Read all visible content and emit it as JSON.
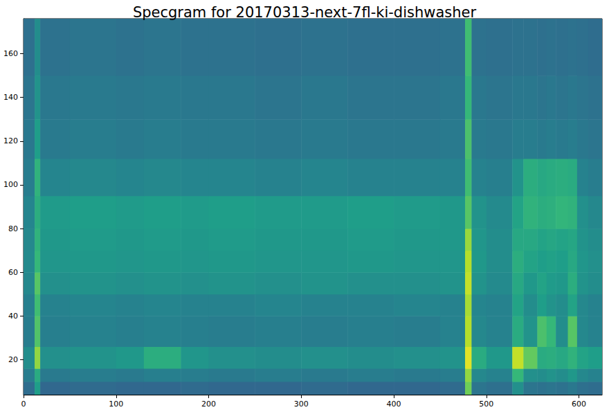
{
  "chart_data": {
    "type": "heatmap",
    "title": "Specgram for 20170313-next-7fl-ki-dishwasher",
    "xlim": [
      0,
      625
    ],
    "xticks": [
      0,
      100,
      200,
      300,
      400,
      500,
      600
    ],
    "ylim": [
      4,
      176
    ],
    "yticks": [
      20,
      40,
      60,
      80,
      100,
      120,
      140,
      160
    ],
    "grid": false,
    "x_edges": [
      0,
      12,
      18,
      50,
      100,
      130,
      170,
      200,
      250,
      300,
      350,
      400,
      450,
      477,
      484,
      500,
      528,
      540,
      555,
      565,
      575,
      588,
      598,
      610,
      625
    ],
    "y_edges": [
      4,
      10,
      16,
      26,
      40,
      50,
      60,
      70,
      80,
      95,
      112,
      130,
      150,
      176
    ],
    "zlim": [
      1,
      10
    ],
    "cells": [
      [
        4.2,
        6.0,
        4.0,
        4.1,
        4.0,
        4.0,
        4.1,
        4.0,
        4.0,
        4.1,
        4.0,
        4.0,
        4.1,
        8.0,
        4.5,
        4.3,
        5.5,
        4.5,
        4.4,
        4.5,
        4.4,
        4.6,
        4.3,
        4.2
      ],
      [
        4.8,
        6.5,
        4.7,
        4.8,
        4.7,
        4.9,
        4.8,
        4.7,
        4.8,
        4.7,
        4.8,
        4.7,
        4.8,
        8.5,
        5.2,
        5.0,
        7.0,
        5.5,
        5.4,
        5.6,
        5.4,
        5.8,
        5.2,
        5.0
      ],
      [
        5.4,
        8.5,
        5.5,
        5.6,
        5.8,
        6.6,
        5.7,
        5.5,
        5.4,
        5.5,
        5.4,
        5.5,
        5.6,
        9.6,
        6.5,
        5.8,
        9.2,
        7.8,
        6.5,
        6.6,
        6.4,
        6.8,
        6.2,
        6.0
      ],
      [
        4.8,
        7.5,
        4.9,
        5.0,
        4.9,
        5.0,
        4.9,
        4.8,
        4.9,
        4.8,
        4.9,
        4.8,
        5.0,
        9.0,
        5.2,
        5.0,
        6.5,
        5.6,
        7.4,
        7.0,
        5.4,
        7.6,
        5.2,
        5.0
      ],
      [
        4.9,
        7.2,
        5.0,
        5.1,
        5.0,
        5.1,
        5.0,
        5.0,
        5.1,
        5.0,
        5.0,
        5.1,
        5.0,
        8.8,
        5.1,
        5.0,
        6.2,
        5.4,
        6.0,
        5.6,
        5.4,
        6.2,
        5.2,
        5.0
      ],
      [
        5.2,
        7.6,
        5.5,
        5.6,
        5.5,
        5.6,
        5.5,
        5.6,
        5.5,
        5.6,
        5.5,
        5.5,
        5.6,
        9.2,
        5.6,
        5.3,
        6.4,
        5.8,
        6.2,
        5.9,
        5.8,
        6.6,
        5.6,
        5.4
      ],
      [
        5.3,
        7.0,
        5.7,
        5.8,
        5.7,
        5.8,
        5.7,
        5.8,
        5.7,
        5.7,
        5.8,
        5.7,
        5.7,
        9.0,
        5.8,
        5.4,
        6.6,
        6.2,
        6.0,
        6.1,
        6.0,
        6.4,
        5.7,
        5.5
      ],
      [
        5.2,
        6.8,
        5.8,
        5.9,
        5.8,
        5.9,
        5.8,
        5.9,
        5.8,
        5.8,
        5.9,
        5.8,
        5.8,
        8.6,
        5.7,
        5.4,
        6.4,
        6.4,
        6.2,
        6.3,
        6.2,
        6.3,
        5.6,
        5.4
      ],
      [
        5.1,
        6.6,
        5.9,
        6.0,
        5.9,
        6.0,
        5.9,
        6.0,
        5.9,
        5.9,
        6.0,
        5.9,
        5.8,
        7.6,
        5.6,
        5.3,
        6.2,
        6.8,
        6.6,
        6.7,
        6.9,
        6.8,
        5.5,
        5.2
      ],
      [
        4.8,
        6.8,
        5.1,
        5.2,
        5.1,
        5.2,
        5.1,
        5.1,
        5.0,
        5.1,
        5.0,
        5.0,
        5.0,
        7.2,
        5.0,
        4.9,
        5.6,
        6.6,
        6.4,
        6.5,
        6.6,
        6.5,
        5.0,
        4.8
      ],
      [
        4.6,
        6.0,
        4.7,
        4.8,
        4.7,
        4.8,
        4.7,
        4.7,
        4.6,
        4.7,
        4.6,
        4.6,
        4.7,
        7.4,
        4.7,
        4.6,
        4.8,
        4.8,
        4.7,
        4.8,
        4.7,
        4.8,
        4.6,
        4.5
      ],
      [
        4.5,
        5.6,
        4.6,
        4.7,
        4.6,
        4.7,
        4.6,
        4.6,
        4.5,
        4.6,
        4.5,
        4.5,
        4.6,
        7.0,
        4.6,
        4.5,
        4.6,
        4.6,
        4.5,
        4.6,
        4.5,
        4.6,
        4.5,
        4.4
      ],
      [
        4.3,
        5.4,
        4.4,
        4.5,
        4.4,
        4.5,
        4.4,
        4.4,
        4.3,
        4.4,
        4.3,
        4.3,
        4.4,
        7.2,
        4.4,
        4.3,
        4.4,
        4.4,
        4.3,
        4.4,
        4.3,
        4.4,
        4.3,
        4.2
      ]
    ]
  }
}
